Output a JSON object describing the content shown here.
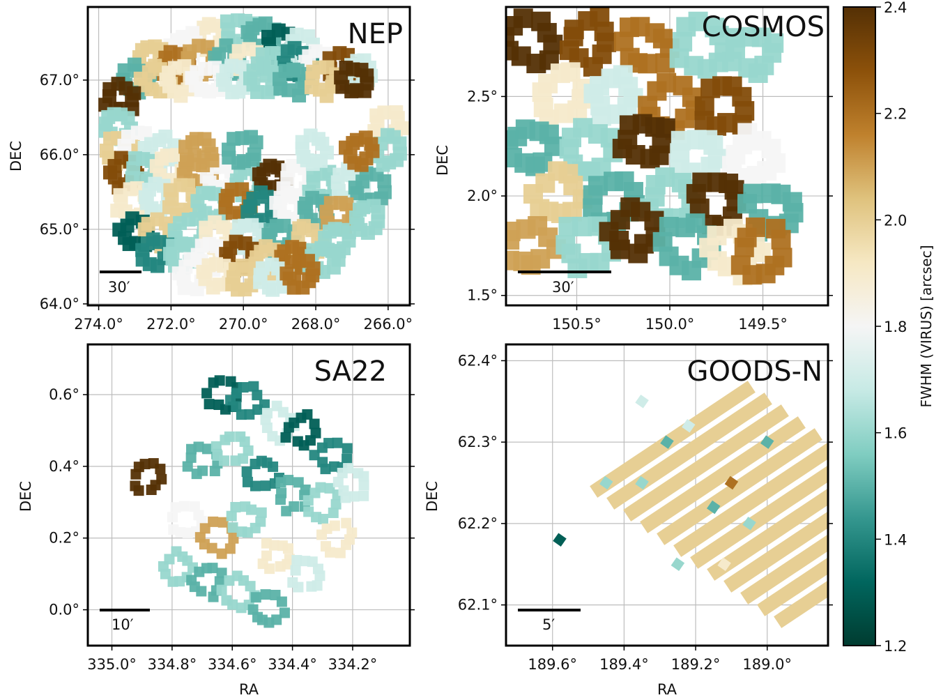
{
  "colorbar": {
    "label": "FWHM (VIRUS) [arcsec]",
    "min": 1.2,
    "max": 2.4,
    "ticks": [
      "2.4",
      "2.2",
      "2.0",
      "1.8",
      "1.6",
      "1.4",
      "1.2"
    ],
    "tick_values": [
      2.4,
      2.2,
      2.0,
      1.8,
      1.6,
      1.4,
      1.2
    ],
    "colormap": [
      "#003c30",
      "#01665e",
      "#35978f",
      "#80cdc1",
      "#c7eae5",
      "#f5f5f5",
      "#f6e8c3",
      "#dfc27d",
      "#bf812d",
      "#8c510a",
      "#543005"
    ]
  },
  "chart_data": [
    {
      "type": "scatter",
      "title": "NEP",
      "xlabel": "",
      "ylabel": "DEC",
      "x_ticks": [
        "274.0°",
        "272.0°",
        "270.0°",
        "268.0°",
        "266.0°"
      ],
      "x_tick_values": [
        274.0,
        272.0,
        270.0,
        268.0,
        266.0
      ],
      "y_ticks": [
        "67.0°",
        "66.0°",
        "65.0°",
        "64.0°"
      ],
      "y_tick_values": [
        67.0,
        66.0,
        65.0,
        64.0
      ],
      "xlim": [
        274.3,
        265.4
      ],
      "ylim": [
        63.98,
        67.98
      ],
      "scale_bar": "30′",
      "grid": true,
      "color_scale": "FWHM (VIRUS) [arcsec]",
      "pointings": [
        {
          "ra": 270.9,
          "dec": 67.6,
          "fwhm": 1.9
        },
        {
          "ra": 270.1,
          "dec": 67.65,
          "fwhm": 1.6
        },
        {
          "ra": 269.5,
          "dec": 67.6,
          "fwhm": 1.5
        },
        {
          "ra": 269.0,
          "dec": 67.45,
          "fwhm": 1.3
        },
        {
          "ra": 268.4,
          "dec": 67.4,
          "fwhm": 1.7
        },
        {
          "ra": 271.6,
          "dec": 67.45,
          "fwhm": 1.8
        },
        {
          "ra": 272.6,
          "dec": 67.3,
          "fwhm": 2.0
        },
        {
          "ra": 271.9,
          "dec": 67.2,
          "fwhm": 2.2
        },
        {
          "ra": 271.2,
          "dec": 67.25,
          "fwhm": 2.1
        },
        {
          "ra": 270.4,
          "dec": 67.25,
          "fwhm": 1.5
        },
        {
          "ra": 269.8,
          "dec": 67.25,
          "fwhm": 1.9
        },
        {
          "ra": 269.2,
          "dec": 67.22,
          "fwhm": 1.6
        },
        {
          "ra": 268.5,
          "dec": 67.22,
          "fwhm": 1.4
        },
        {
          "ra": 267.9,
          "dec": 67.2,
          "fwhm": 1.8
        },
        {
          "ra": 267.3,
          "dec": 67.15,
          "fwhm": 2.3
        },
        {
          "ra": 266.8,
          "dec": 67.1,
          "fwhm": 1.7
        },
        {
          "ra": 273.0,
          "dec": 67.0,
          "fwhm": 1.5
        },
        {
          "ra": 272.4,
          "dec": 67.0,
          "fwhm": 2.0
        },
        {
          "ra": 271.8,
          "dec": 67.0,
          "fwhm": 1.9
        },
        {
          "ra": 271.0,
          "dec": 67.0,
          "fwhm": 1.8
        },
        {
          "ra": 270.2,
          "dec": 67.0,
          "fwhm": 1.7
        },
        {
          "ra": 269.4,
          "dec": 67.0,
          "fwhm": 1.6
        },
        {
          "ra": 268.6,
          "dec": 67.0,
          "fwhm": 1.5
        },
        {
          "ra": 267.8,
          "dec": 67.0,
          "fwhm": 2.0
        },
        {
          "ra": 266.9,
          "dec": 67.0,
          "fwhm": 2.4
        },
        {
          "ra": 273.4,
          "dec": 66.75,
          "fwhm": 2.4
        },
        {
          "ra": 273.5,
          "dec": 66.4,
          "fwhm": 1.6
        },
        {
          "ra": 273.4,
          "dec": 66.05,
          "fwhm": 2.0
        },
        {
          "ra": 272.9,
          "dec": 66.1,
          "fwhm": 1.8
        },
        {
          "ra": 272.3,
          "dec": 66.05,
          "fwhm": 1.7
        },
        {
          "ra": 273.3,
          "dec": 65.75,
          "fwhm": 2.3
        },
        {
          "ra": 272.7,
          "dec": 65.8,
          "fwhm": 1.6
        },
        {
          "ra": 272.0,
          "dec": 65.8,
          "fwhm": 1.9
        },
        {
          "ra": 271.3,
          "dec": 65.8,
          "fwhm": 2.1
        },
        {
          "ra": 270.6,
          "dec": 65.7,
          "fwhm": 1.8
        },
        {
          "ra": 269.9,
          "dec": 65.65,
          "fwhm": 1.6
        },
        {
          "ra": 269.2,
          "dec": 65.7,
          "fwhm": 2.4
        },
        {
          "ra": 268.5,
          "dec": 65.65,
          "fwhm": 1.8
        },
        {
          "ra": 267.8,
          "dec": 65.6,
          "fwhm": 1.6
        },
        {
          "ra": 267.1,
          "dec": 65.6,
          "fwhm": 1.7
        },
        {
          "ra": 266.5,
          "dec": 65.55,
          "fwhm": 1.5
        },
        {
          "ra": 273.1,
          "dec": 65.35,
          "fwhm": 1.9
        },
        {
          "ra": 272.4,
          "dec": 65.4,
          "fwhm": 1.7
        },
        {
          "ra": 271.7,
          "dec": 65.4,
          "fwhm": 2.0
        },
        {
          "ra": 270.9,
          "dec": 65.35,
          "fwhm": 1.6
        },
        {
          "ra": 270.2,
          "dec": 65.35,
          "fwhm": 2.2
        },
        {
          "ra": 269.5,
          "dec": 65.3,
          "fwhm": 1.4
        },
        {
          "ra": 268.7,
          "dec": 65.3,
          "fwhm": 1.8
        },
        {
          "ra": 268.0,
          "dec": 65.25,
          "fwhm": 1.5
        },
        {
          "ra": 267.3,
          "dec": 65.2,
          "fwhm": 2.1
        },
        {
          "ra": 266.6,
          "dec": 65.15,
          "fwhm": 1.6
        },
        {
          "ra": 273.0,
          "dec": 64.95,
          "fwhm": 1.3
        },
        {
          "ra": 272.3,
          "dec": 64.95,
          "fwhm": 2.0
        },
        {
          "ra": 271.5,
          "dec": 64.95,
          "fwhm": 1.6
        },
        {
          "ra": 270.7,
          "dec": 64.9,
          "fwhm": 1.9
        },
        {
          "ra": 269.9,
          "dec": 64.9,
          "fwhm": 1.7
        },
        {
          "ra": 269.0,
          "dec": 64.9,
          "fwhm": 1.5
        },
        {
          "ra": 268.2,
          "dec": 64.85,
          "fwhm": 2.0
        },
        {
          "ra": 267.4,
          "dec": 64.85,
          "fwhm": 1.6
        },
        {
          "ra": 272.4,
          "dec": 64.7,
          "fwhm": 1.4
        },
        {
          "ra": 271.7,
          "dec": 64.65,
          "fwhm": 1.6
        },
        {
          "ra": 270.9,
          "dec": 64.65,
          "fwhm": 1.8
        },
        {
          "ra": 270.1,
          "dec": 64.65,
          "fwhm": 2.3
        },
        {
          "ra": 269.3,
          "dec": 64.6,
          "fwhm": 2.0
        },
        {
          "ra": 268.6,
          "dec": 64.6,
          "fwhm": 2.2
        },
        {
          "ra": 267.8,
          "dec": 64.6,
          "fwhm": 1.6
        },
        {
          "ra": 271.4,
          "dec": 64.4,
          "fwhm": 1.8
        },
        {
          "ra": 270.7,
          "dec": 64.4,
          "fwhm": 1.9
        },
        {
          "ra": 270.0,
          "dec": 64.35,
          "fwhm": 2.0
        },
        {
          "ra": 269.2,
          "dec": 64.35,
          "fwhm": 1.7
        },
        {
          "ra": 268.4,
          "dec": 64.4,
          "fwhm": 2.2
        },
        {
          "ra": 266.0,
          "dec": 66.4,
          "fwhm": 1.9
        },
        {
          "ra": 266.0,
          "dec": 66.05,
          "fwhm": 1.6
        },
        {
          "ra": 266.8,
          "dec": 66.05,
          "fwhm": 2.2
        },
        {
          "ra": 268.1,
          "dec": 66.05,
          "fwhm": 1.7
        },
        {
          "ra": 270.0,
          "dec": 66.05,
          "fwhm": 1.5
        },
        {
          "ra": 271.2,
          "dec": 66.05,
          "fwhm": 2.1
        }
      ]
    },
    {
      "type": "scatter",
      "title": "COSMOS",
      "xlabel": "",
      "ylabel": "DEC",
      "x_ticks": [
        "150.5°",
        "150.0°",
        "149.5°"
      ],
      "x_tick_values": [
        150.5,
        150.0,
        149.5
      ],
      "y_ticks": [
        "2.5°",
        "2.0°",
        "1.5°"
      ],
      "y_tick_values": [
        2.5,
        2.0,
        1.5
      ],
      "xlim": [
        150.88,
        149.15
      ],
      "ylim": [
        1.45,
        2.95
      ],
      "scale_bar": "30′",
      "grid": true,
      "color_scale": "FWHM (VIRUS) [arcsec]",
      "pointings": [
        {
          "ra": 150.75,
          "dec": 2.77,
          "fwhm": 2.4
        },
        {
          "ra": 150.43,
          "dec": 2.78,
          "fwhm": 2.3
        },
        {
          "ra": 150.13,
          "dec": 2.75,
          "fwhm": 2.2
        },
        {
          "ra": 149.83,
          "dec": 2.75,
          "fwhm": 1.6
        },
        {
          "ra": 149.55,
          "dec": 2.72,
          "fwhm": 1.6
        },
        {
          "ra": 150.58,
          "dec": 2.5,
          "fwhm": 1.9
        },
        {
          "ra": 150.3,
          "dec": 2.5,
          "fwhm": 1.7
        },
        {
          "ra": 150.0,
          "dec": 2.45,
          "fwhm": 2.2
        },
        {
          "ra": 149.7,
          "dec": 2.45,
          "fwhm": 2.3
        },
        {
          "ra": 150.75,
          "dec": 2.25,
          "fwhm": 1.5
        },
        {
          "ra": 150.43,
          "dec": 2.22,
          "fwhm": 1.6
        },
        {
          "ra": 150.13,
          "dec": 2.28,
          "fwhm": 2.4
        },
        {
          "ra": 149.85,
          "dec": 2.2,
          "fwhm": 1.7
        },
        {
          "ra": 149.55,
          "dec": 2.2,
          "fwhm": 1.8
        },
        {
          "ra": 150.6,
          "dec": 2.0,
          "fwhm": 2.0
        },
        {
          "ra": 150.3,
          "dec": 1.98,
          "fwhm": 1.5
        },
        {
          "ra": 149.99,
          "dec": 1.98,
          "fwhm": 1.6
        },
        {
          "ra": 149.73,
          "dec": 1.98,
          "fwhm": 2.4
        },
        {
          "ra": 149.45,
          "dec": 1.93,
          "fwhm": 1.5
        },
        {
          "ra": 150.75,
          "dec": 1.75,
          "fwhm": 2.1
        },
        {
          "ra": 150.45,
          "dec": 1.75,
          "fwhm": 1.6
        },
        {
          "ra": 150.2,
          "dec": 1.82,
          "fwhm": 2.4
        },
        {
          "ra": 149.91,
          "dec": 1.75,
          "fwhm": 1.5
        },
        {
          "ra": 149.65,
          "dec": 1.72,
          "fwhm": 1.9
        },
        {
          "ra": 149.5,
          "dec": 1.72,
          "fwhm": 2.2
        }
      ]
    },
    {
      "type": "scatter",
      "title": "SA22",
      "xlabel": "RA",
      "ylabel": "DEC",
      "x_ticks": [
        "335.0°",
        "334.8°",
        "334.6°",
        "334.4°",
        "334.2°"
      ],
      "x_tick_values": [
        335.0,
        334.8,
        334.6,
        334.4,
        334.2
      ],
      "y_ticks": [
        "0.6°",
        "0.4°",
        "0.2°",
        "0.0°"
      ],
      "y_tick_values": [
        0.6,
        0.4,
        0.2,
        0.0
      ],
      "xlim": [
        335.08,
        334.01
      ],
      "ylim": [
        -0.1,
        0.74
      ],
      "scale_bar": "10′",
      "grid": true,
      "color_scale": "FWHM (VIRUS) [arcsec]",
      "pointings": [
        {
          "ra": 334.88,
          "dec": 0.37,
          "fwhm": 2.4
        },
        {
          "ra": 334.63,
          "dec": 0.6,
          "fwhm": 1.3
        },
        {
          "ra": 334.55,
          "dec": 0.58,
          "fwhm": 1.4
        },
        {
          "ra": 334.45,
          "dec": 0.52,
          "fwhm": 1.7
        },
        {
          "ra": 334.37,
          "dec": 0.5,
          "fwhm": 1.3
        },
        {
          "ra": 334.27,
          "dec": 0.43,
          "fwhm": 1.4
        },
        {
          "ra": 334.7,
          "dec": 0.42,
          "fwhm": 1.5
        },
        {
          "ra": 334.6,
          "dec": 0.45,
          "fwhm": 1.6
        },
        {
          "ra": 334.5,
          "dec": 0.38,
          "fwhm": 1.4
        },
        {
          "ra": 334.4,
          "dec": 0.32,
          "fwhm": 1.5
        },
        {
          "ra": 334.3,
          "dec": 0.3,
          "fwhm": 1.6
        },
        {
          "ra": 334.2,
          "dec": 0.35,
          "fwhm": 1.7
        },
        {
          "ra": 334.75,
          "dec": 0.25,
          "fwhm": 1.8
        },
        {
          "ra": 334.65,
          "dec": 0.2,
          "fwhm": 2.1
        },
        {
          "ra": 334.55,
          "dec": 0.25,
          "fwhm": 1.6
        },
        {
          "ra": 334.45,
          "dec": 0.15,
          "fwhm": 1.9
        },
        {
          "ra": 334.35,
          "dec": 0.1,
          "fwhm": 1.7
        },
        {
          "ra": 334.25,
          "dec": 0.2,
          "fwhm": 1.9
        },
        {
          "ra": 334.78,
          "dec": 0.12,
          "fwhm": 1.6
        },
        {
          "ra": 334.68,
          "dec": 0.08,
          "fwhm": 1.5
        },
        {
          "ra": 334.58,
          "dec": 0.05,
          "fwhm": 1.6
        },
        {
          "ra": 334.48,
          "dec": 0.0,
          "fwhm": 1.5
        }
      ]
    },
    {
      "type": "scatter",
      "title": "GOODS-N",
      "xlabel": "RA",
      "ylabel": "DEC",
      "x_ticks": [
        "189.6°",
        "189.4°",
        "189.2°",
        "189.0°"
      ],
      "x_tick_values": [
        189.6,
        189.4,
        189.2,
        189.0
      ],
      "y_ticks": [
        "62.4°",
        "62.3°",
        "62.2°",
        "62.1°"
      ],
      "y_tick_values": [
        62.4,
        62.3,
        62.2,
        62.1
      ],
      "xlim": [
        189.73,
        188.83
      ],
      "ylim": [
        62.05,
        62.42
      ],
      "scale_bar": "5′",
      "grid": true,
      "color_scale": "FWHM (VIRUS) [arcsec]",
      "pointings": [
        {
          "ra": 189.58,
          "dec": 62.18,
          "fwhm": 1.3
        },
        {
          "ra": 189.35,
          "dec": 62.25,
          "fwhm": 1.6
        },
        {
          "ra": 189.28,
          "dec": 62.3,
          "fwhm": 1.5
        },
        {
          "ra": 189.22,
          "dec": 62.32,
          "fwhm": 1.7
        },
        {
          "ra": 189.15,
          "dec": 62.22,
          "fwhm": 1.5
        },
        {
          "ra": 189.1,
          "dec": 62.25,
          "fwhm": 2.2
        },
        {
          "ra": 189.05,
          "dec": 62.2,
          "fwhm": 1.6
        },
        {
          "ra": 189.0,
          "dec": 62.3,
          "fwhm": 1.5
        },
        {
          "ra": 189.25,
          "dec": 62.15,
          "fwhm": 1.6
        },
        {
          "ra": 189.12,
          "dec": 62.15,
          "fwhm": 1.9
        },
        {
          "ra": 189.35,
          "dec": 62.35,
          "fwhm": 1.7
        },
        {
          "ra": 189.45,
          "dec": 62.25,
          "fwhm": 1.6
        }
      ],
      "stripes_fwhm": 2.0
    }
  ]
}
